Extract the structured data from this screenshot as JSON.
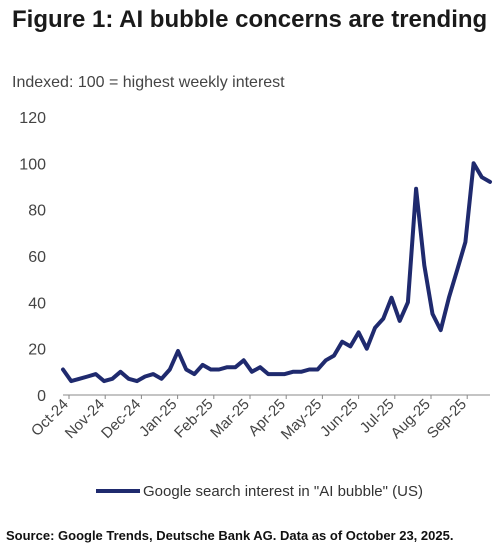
{
  "title": "Figure 1: AI bubble concerns are trending",
  "subtitle": "Indexed: 100 = highest weekly interest",
  "source": "Source: Google Trends, Deutsche Bank AG. Data as of October 23, 2025.",
  "chart_data": {
    "type": "line",
    "xlabel": "",
    "ylabel": "",
    "ylim": [
      0,
      120
    ],
    "yticks": [
      0,
      20,
      40,
      60,
      80,
      100,
      120
    ],
    "x_tick_labels": [
      "Oct-24",
      "Nov-24",
      "Dec-24",
      "Jan-25",
      "Feb-25",
      "Mar-25",
      "Apr-25",
      "May-25",
      "Jun-25",
      "Jul-25",
      "Aug-25",
      "Sep-25"
    ],
    "grid": false,
    "legend_position": "bottom",
    "line_color": "#1f2a6e",
    "series": [
      {
        "name": "Google search interest in \"AI bubble\" (US)",
        "values": [
          11,
          6,
          7,
          8,
          9,
          6,
          7,
          10,
          7,
          6,
          8,
          9,
          7,
          11,
          19,
          11,
          9,
          13,
          11,
          11,
          12,
          12,
          15,
          10,
          12,
          9,
          9,
          9,
          10,
          10,
          11,
          11,
          15,
          17,
          23,
          21,
          27,
          20,
          29,
          33,
          42,
          32,
          40,
          89,
          56,
          35,
          28,
          42,
          54,
          66,
          100,
          94,
          92
        ]
      }
    ]
  }
}
